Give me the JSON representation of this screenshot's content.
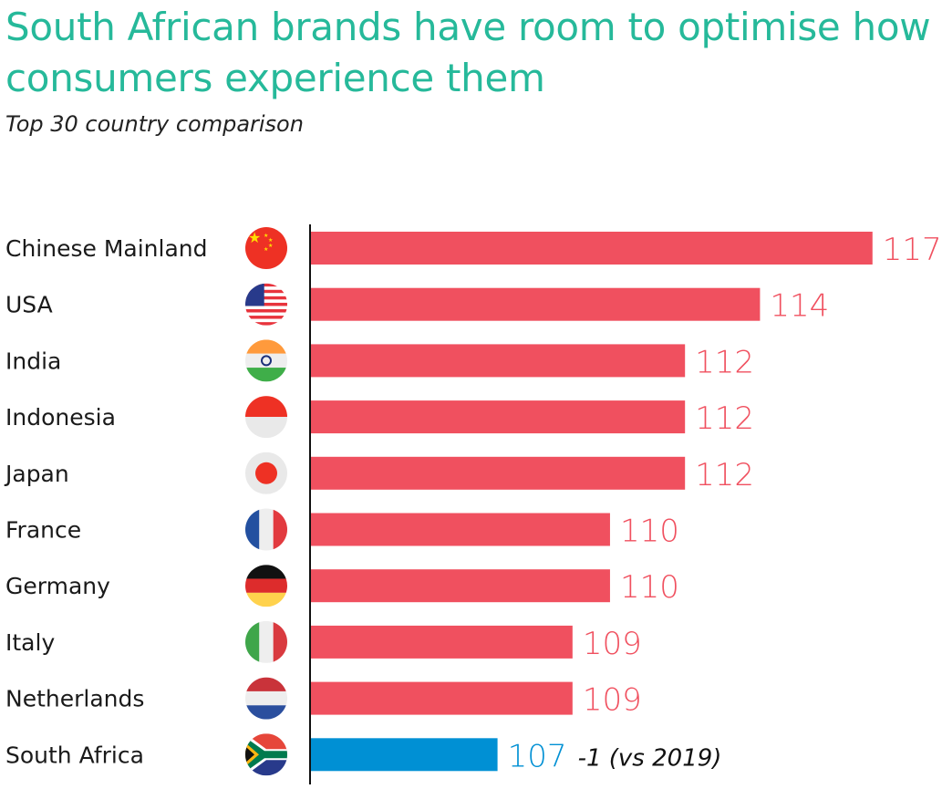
{
  "chart_data": {
    "type": "bar",
    "orientation": "horizontal",
    "title": "South African brands have room to optimise how consumers experience them",
    "subtitle": "Top 30 country comparison",
    "categories": [
      "Chinese Mainland",
      "USA",
      "India",
      "Indonesia",
      "Japan",
      "France",
      "Germany",
      "Italy",
      "Netherlands",
      "South Africa"
    ],
    "values": [
      117,
      114,
      112,
      112,
      112,
      110,
      110,
      109,
      109,
      107
    ],
    "flags": [
      "china-flag",
      "usa-flag",
      "india-flag",
      "indonesia-flag",
      "japan-flag",
      "france-flag",
      "germany-flag",
      "italy-flag",
      "netherlands-flag",
      "south-africa-flag"
    ],
    "xlim": [
      102,
      117.2
    ],
    "highlight": {
      "category": "South Africa",
      "annotation": "-1 (vs 2019)"
    },
    "colors": {
      "bar": "#f0505f",
      "highlight": "#0090d4",
      "title": "#26b99a"
    },
    "grid": false,
    "legend": "none"
  }
}
